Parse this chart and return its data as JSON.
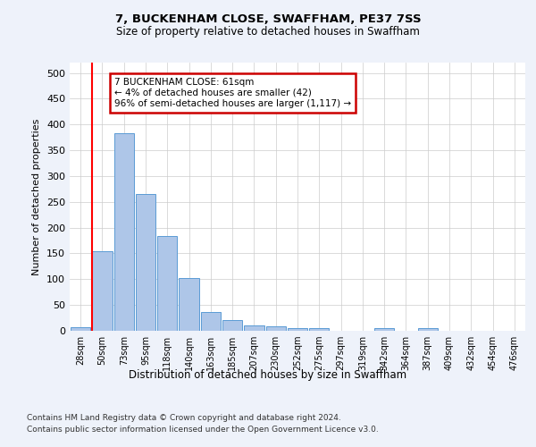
{
  "title1": "7, BUCKENHAM CLOSE, SWAFFHAM, PE37 7SS",
  "title2": "Size of property relative to detached houses in Swaffham",
  "xlabel": "Distribution of detached houses by size in Swaffham",
  "ylabel": "Number of detached properties",
  "bar_labels": [
    "28sqm",
    "50sqm",
    "73sqm",
    "95sqm",
    "118sqm",
    "140sqm",
    "163sqm",
    "185sqm",
    "207sqm",
    "230sqm",
    "252sqm",
    "275sqm",
    "297sqm",
    "319sqm",
    "342sqm",
    "364sqm",
    "387sqm",
    "409sqm",
    "432sqm",
    "454sqm",
    "476sqm"
  ],
  "bar_values": [
    7,
    155,
    383,
    265,
    184,
    103,
    36,
    21,
    10,
    9,
    5,
    5,
    0,
    0,
    5,
    0,
    5,
    0,
    0,
    0,
    0
  ],
  "bar_color": "#aec6e8",
  "bar_edge_color": "#5b9bd5",
  "vline_color": "#ff0000",
  "annotation_text": "7 BUCKENHAM CLOSE: 61sqm\n← 4% of detached houses are smaller (42)\n96% of semi-detached houses are larger (1,117) →",
  "annotation_box_color": "#ffffff",
  "annotation_box_edge_color": "#cc0000",
  "ylim": [
    0,
    520
  ],
  "yticks": [
    0,
    50,
    100,
    150,
    200,
    250,
    300,
    350,
    400,
    450,
    500
  ],
  "footer1": "Contains HM Land Registry data © Crown copyright and database right 2024.",
  "footer2": "Contains public sector information licensed under the Open Government Licence v3.0.",
  "bg_color": "#eef2fa",
  "plot_bg_color": "#ffffff"
}
